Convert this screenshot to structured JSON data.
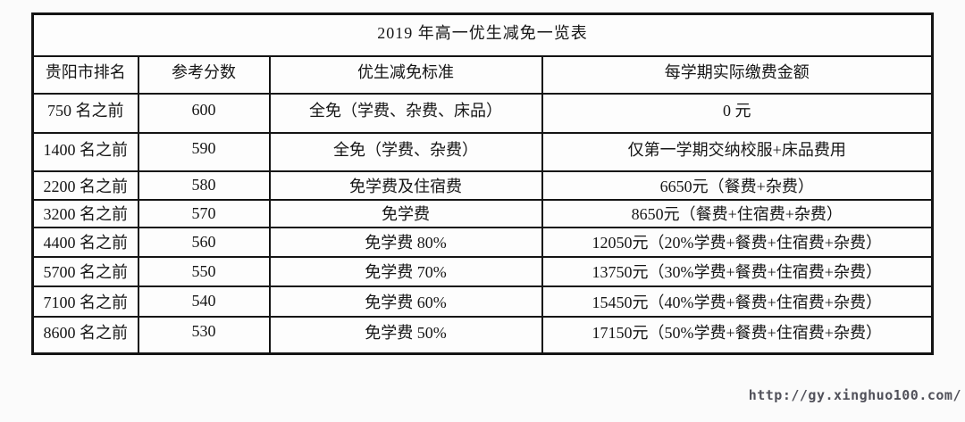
{
  "title": "2019 年高一优生减免一览表",
  "table": {
    "headers": [
      "贵阳市排名",
      "参考分数",
      "优生减免标准",
      "每学期实际缴费金额"
    ],
    "rows": [
      [
        "750 名之前",
        "600",
        "全免（学费、杂费、床品）",
        "0 元"
      ],
      [
        "1400 名之前",
        "590",
        "全免（学费、杂费）",
        "仅第一学期交纳校服+床品费用"
      ],
      [
        "2200 名之前",
        "580",
        "免学费及住宿费",
        "6650元（餐费+杂费）"
      ],
      [
        "3200 名之前",
        "570",
        "免学费",
        "8650元（餐费+住宿费+杂费）"
      ],
      [
        "4400 名之前",
        "560",
        "免学费 80%",
        "12050元（20%学费+餐费+住宿费+杂费）"
      ],
      [
        "5700 名之前",
        "550",
        "免学费 70%",
        "13750元（30%学费+餐费+住宿费+杂费）"
      ],
      [
        "7100 名之前",
        "540",
        "免学费 60%",
        "15450元（40%学费+餐费+住宿费+杂费）"
      ],
      [
        "8600 名之前",
        "530",
        "免学费 50%",
        "17150元（50%学费+餐费+住宿费+杂费）"
      ]
    ]
  },
  "watermark": {
    "url": "http://gy.xinghuo100.com/"
  },
  "colors": {
    "border": "#141414",
    "text": "#161616",
    "watermark": "#51515a",
    "background": "#fbfbfb"
  }
}
